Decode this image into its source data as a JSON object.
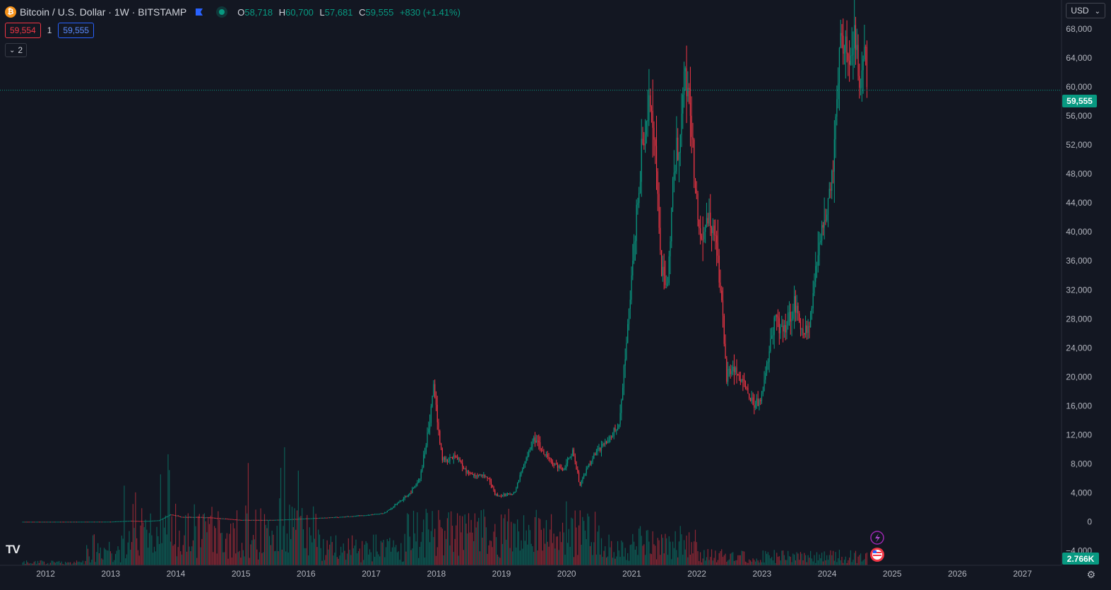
{
  "header": {
    "symbol_icon": "bitcoin-icon",
    "title": "Bitcoin / U.S. Dollar · 1W · BITSTAMP",
    "ohlc": {
      "o_label": "O",
      "o_value": "58,718",
      "h_label": "H",
      "h_value": "60,700",
      "l_label": "L",
      "l_value": "57,681",
      "c_label": "C",
      "c_value": "59,555",
      "change": "+830 (+1.41%)"
    }
  },
  "trade": {
    "sell_price": "59,554",
    "quantity": "1",
    "buy_price": "59,555"
  },
  "indicators": {
    "collapsed_count": "2"
  },
  "price_scale": {
    "currency": "USD",
    "last_price_label": "59,555",
    "volume_label": "2.766K"
  },
  "colors": {
    "up": "#089981",
    "down": "#f23645",
    "background": "#131722",
    "text": "#b2b5be"
  },
  "chart_data": {
    "type": "candlestick",
    "interval": "1W",
    "ylim": [
      -6000,
      72000
    ],
    "yticks": [
      68000,
      64000,
      60000,
      56000,
      52000,
      48000,
      44000,
      40000,
      36000,
      32000,
      28000,
      24000,
      20000,
      16000,
      12000,
      8000,
      4000,
      0,
      -4000
    ],
    "ytick_labels": [
      "68,000",
      "64,000",
      "60,000",
      "56,000",
      "52,000",
      "48,000",
      "44,000",
      "40,000",
      "36,000",
      "32,000",
      "28,000",
      "24,000",
      "20,000",
      "16,000",
      "12,000",
      "8,000",
      "4,000",
      "0",
      "−4,000"
    ],
    "xlim": [
      2011.3,
      2027.6
    ],
    "xticks": [
      2012,
      2013,
      2014,
      2015,
      2016,
      2017,
      2018,
      2019,
      2020,
      2021,
      2022,
      2023,
      2024,
      2025,
      2026,
      2027
    ],
    "xtick_labels": [
      "2012",
      "2013",
      "2014",
      "2015",
      "2016",
      "2017",
      "2018",
      "2019",
      "2020",
      "2021",
      "2022",
      "2023",
      "2024",
      "2025",
      "2026",
      "2027"
    ],
    "last_price": 59555,
    "price_path": [
      [
        2011.65,
        5
      ],
      [
        2012.0,
        5
      ],
      [
        2012.5,
        8
      ],
      [
        2013.0,
        15
      ],
      [
        2013.3,
        140
      ],
      [
        2013.5,
        90
      ],
      [
        2013.75,
        200
      ],
      [
        2013.92,
        1000
      ],
      [
        2014.1,
        650
      ],
      [
        2014.5,
        600
      ],
      [
        2015.0,
        250
      ],
      [
        2015.5,
        250
      ],
      [
        2015.9,
        400
      ],
      [
        2016.5,
        650
      ],
      [
        2016.9,
        900
      ],
      [
        2017.2,
        1200
      ],
      [
        2017.4,
        2500
      ],
      [
        2017.6,
        4000
      ],
      [
        2017.75,
        6000
      ],
      [
        2017.9,
        14000
      ],
      [
        2017.96,
        19000
      ],
      [
        2018.05,
        11000
      ],
      [
        2018.1,
        8500
      ],
      [
        2018.3,
        9000
      ],
      [
        2018.5,
        6500
      ],
      [
        2018.8,
        6300
      ],
      [
        2018.9,
        3800
      ],
      [
        2019.0,
        3600
      ],
      [
        2019.2,
        4000
      ],
      [
        2019.35,
        8000
      ],
      [
        2019.5,
        11500
      ],
      [
        2019.6,
        10000
      ],
      [
        2019.8,
        8000
      ],
      [
        2019.95,
        7200
      ],
      [
        2020.1,
        9800
      ],
      [
        2020.2,
        5000
      ],
      [
        2020.4,
        9000
      ],
      [
        2020.6,
        11000
      ],
      [
        2020.8,
        13000
      ],
      [
        2020.95,
        28000
      ],
      [
        2021.05,
        40000
      ],
      [
        2021.15,
        50000
      ],
      [
        2021.28,
        58000
      ],
      [
        2021.35,
        55000
      ],
      [
        2021.45,
        35000
      ],
      [
        2021.55,
        32000
      ],
      [
        2021.62,
        45000
      ],
      [
        2021.75,
        55000
      ],
      [
        2021.82,
        62000
      ],
      [
        2021.88,
        57000
      ],
      [
        2021.98,
        46000
      ],
      [
        2022.05,
        38000
      ],
      [
        2022.2,
        42000
      ],
      [
        2022.3,
        38000
      ],
      [
        2022.4,
        28000
      ],
      [
        2022.45,
        20000
      ],
      [
        2022.55,
        21000
      ],
      [
        2022.7,
        19500
      ],
      [
        2022.85,
        16500
      ],
      [
        2023.0,
        17000
      ],
      [
        2023.1,
        23000
      ],
      [
        2023.2,
        28000
      ],
      [
        2023.35,
        27000
      ],
      [
        2023.5,
        30000
      ],
      [
        2023.65,
        26000
      ],
      [
        2023.75,
        27500
      ],
      [
        2023.85,
        37000
      ],
      [
        2024.0,
        43000
      ],
      [
        2024.1,
        50000
      ],
      [
        2024.2,
        68000
      ],
      [
        2024.3,
        63000
      ],
      [
        2024.45,
        67000
      ],
      [
        2024.5,
        58000
      ],
      [
        2024.58,
        66000
      ],
      [
        2024.62,
        59555
      ]
    ]
  },
  "events": {
    "flash_icon": "lightning-icon",
    "flag_icon": "us-flag-icon"
  },
  "branding": {
    "logo": "TV",
    "settings_icon": "gear-icon"
  }
}
